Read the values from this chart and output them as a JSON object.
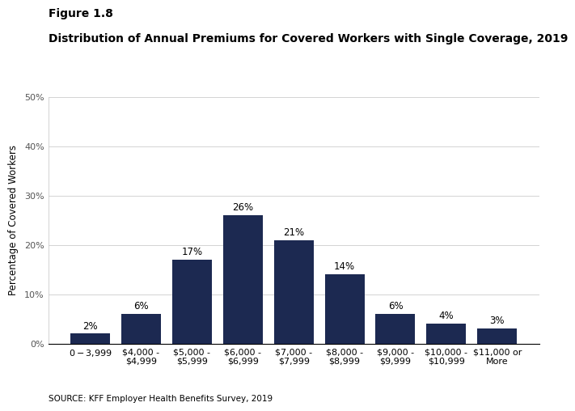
{
  "figure_label": "Figure 1.8",
  "title": "Distribution of Annual Premiums for Covered Workers with Single Coverage, 2019",
  "categories": [
    "$0 - $3,999",
    "$4,000 -\n$4,999",
    "$5,000 -\n$5,999",
    "$6,000 -\n$6,999",
    "$7,000 -\n$7,999",
    "$8,000 -\n$8,999",
    "$9,000 -\n$9,999",
    "$10,000 -\n$10,999",
    "$11,000 or\nMore"
  ],
  "values": [
    2,
    6,
    17,
    26,
    21,
    14,
    6,
    4,
    3
  ],
  "bar_color": "#1C2951",
  "ylabel": "Percentage of Covered Workers",
  "ylim": [
    0,
    50
  ],
  "yticks": [
    0,
    10,
    20,
    30,
    40,
    50
  ],
  "source": "SOURCE: KFF Employer Health Benefits Survey, 2019",
  "bar_width": 0.78,
  "figure_label_fontsize": 10,
  "title_fontsize": 10,
  "tick_fontsize": 8,
  "ylabel_fontsize": 8.5,
  "label_fontsize": 8.5,
  "source_fontsize": 7.5
}
